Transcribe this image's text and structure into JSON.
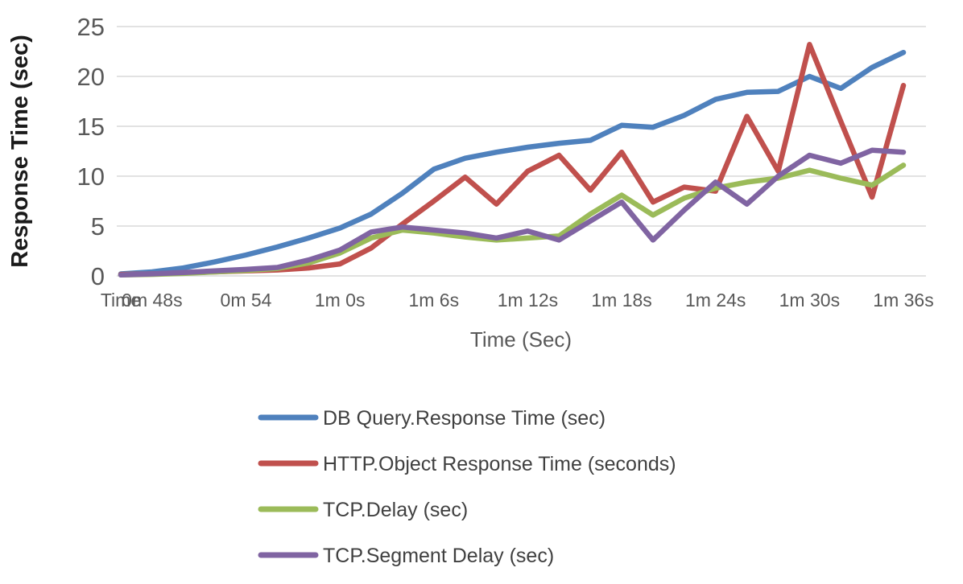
{
  "chart_data": {
    "type": "line",
    "title": "",
    "xlabel": "Time (Sec)",
    "ylabel": "Response Time (sec)",
    "ylim": [
      0,
      25
    ],
    "y_ticks": [
      0,
      5,
      10,
      15,
      20,
      25
    ],
    "grid": "horizontal",
    "gridline_color": "#D9D9D9",
    "tick_text_color": "#595959",
    "axis_title_color": "#595959",
    "y_axis_title_color": "#1a1a1a",
    "legend_text_color": "#404040",
    "legend_position": "bottom-left",
    "n_points": 26,
    "x_tick_labels": [
      {
        "pos": 0,
        "label": "Time"
      },
      {
        "pos": 1,
        "label": "0m 48s"
      },
      {
        "pos": 4,
        "label": "0m 54"
      },
      {
        "pos": 7,
        "label": "1m 0s"
      },
      {
        "pos": 10,
        "label": "1m 6s"
      },
      {
        "pos": 13,
        "label": "1m 12s"
      },
      {
        "pos": 16,
        "label": "1m 18s"
      },
      {
        "pos": 19,
        "label": "1m 24s"
      },
      {
        "pos": 22,
        "label": "1m 30s"
      },
      {
        "pos": 25,
        "label": "1m 36s"
      }
    ],
    "series": [
      {
        "name": "DB Query.Response Time (sec)",
        "color": "#4F81BD",
        "values": [
          0.2,
          0.4,
          0.8,
          1.4,
          2.1,
          2.9,
          3.8,
          4.8,
          6.2,
          8.3,
          10.7,
          11.8,
          12.4,
          12.9,
          13.3,
          13.6,
          15.1,
          14.9,
          16.1,
          17.7,
          18.4,
          18.5,
          20.0,
          18.8,
          20.9,
          22.4
        ]
      },
      {
        "name": "HTTP.Object Response Time (seconds)",
        "color": "#C0504D",
        "values": [
          0.15,
          0.2,
          0.3,
          0.4,
          0.5,
          0.6,
          0.8,
          1.2,
          2.8,
          5.2,
          7.5,
          9.9,
          7.2,
          10.5,
          12.1,
          8.6,
          12.4,
          7.4,
          8.9,
          8.5,
          16.0,
          10.5,
          23.2,
          15.5,
          7.9,
          19.1
        ]
      },
      {
        "name": "TCP.Delay (sec)",
        "color": "#9BBB59",
        "values": [
          0.1,
          0.15,
          0.25,
          0.4,
          0.55,
          0.75,
          1.3,
          2.3,
          3.8,
          4.6,
          4.3,
          3.9,
          3.6,
          3.8,
          4.0,
          6.2,
          8.1,
          6.1,
          7.8,
          8.8,
          9.4,
          9.8,
          10.6,
          9.8,
          9.1,
          11.1
        ]
      },
      {
        "name": "TCP.Segment Delay (sec)",
        "color": "#8064A2",
        "values": [
          0.1,
          0.2,
          0.35,
          0.5,
          0.65,
          0.85,
          1.6,
          2.6,
          4.4,
          4.9,
          4.6,
          4.3,
          3.8,
          4.5,
          3.6,
          5.5,
          7.4,
          3.6,
          6.6,
          9.4,
          7.2,
          10.0,
          12.1,
          11.3,
          12.6,
          12.4
        ]
      }
    ]
  }
}
